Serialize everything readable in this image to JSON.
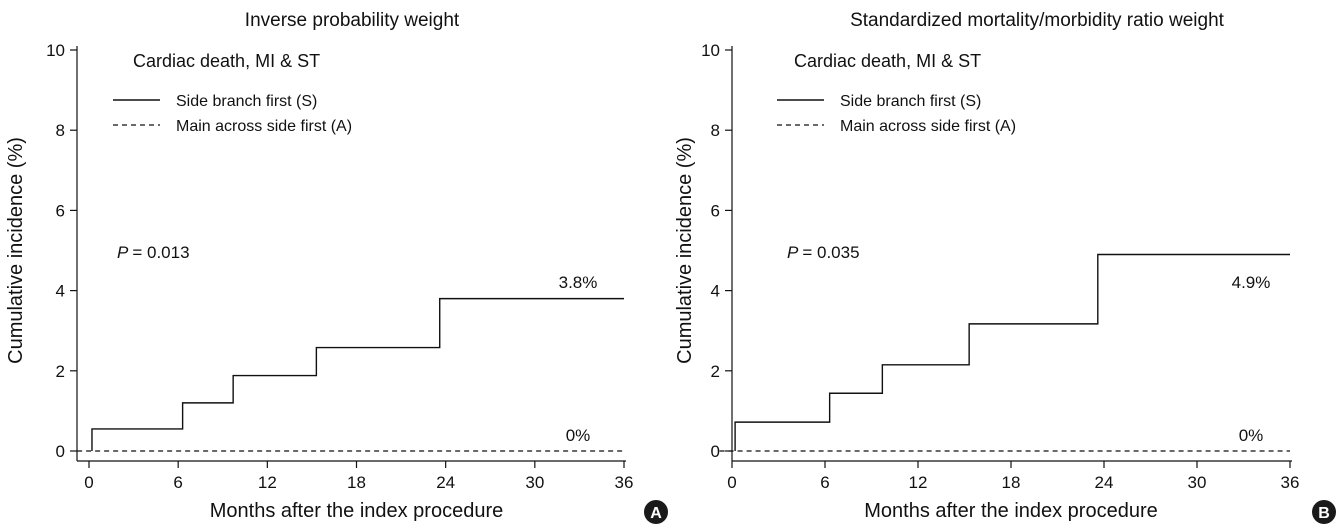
{
  "chart_data": [
    {
      "type": "line",
      "panel_label": "A",
      "title": "Inverse probability weight",
      "xlabel": "Months after the index procedure",
      "ylabel": "Cumulative incidence (%)",
      "xlim": [
        0,
        36
      ],
      "ylim": [
        0,
        10
      ],
      "x_ticks": [
        0,
        6,
        12,
        18,
        24,
        30,
        36
      ],
      "y_ticks": [
        0,
        2,
        4,
        6,
        8,
        10
      ],
      "legend_title": "Cardiac death, MI & ST",
      "legend_position": "top-left",
      "p_value_label": "P",
      "p_value_text": "= 0.013",
      "grid": false,
      "series": [
        {
          "name": "Side branch first (S)",
          "line_style": "solid",
          "step": true,
          "x": [
            0.2,
            6.3,
            9.7,
            15.3,
            23.6,
            36
          ],
          "y": [
            0.55,
            1.2,
            1.88,
            2.58,
            3.8,
            3.8
          ],
          "end_label": "3.8%"
        },
        {
          "name": "Main across side first (A)",
          "line_style": "dashed",
          "step": true,
          "x": [
            -0.8,
            36
          ],
          "y": [
            0,
            0
          ],
          "end_label": "0%"
        }
      ]
    },
    {
      "type": "line",
      "panel_label": "B",
      "title": "Standardized mortality/morbidity ratio weight",
      "xlabel": "Months after the index procedure",
      "ylabel": "Cumulative incidence (%)",
      "xlim": [
        0,
        36
      ],
      "ylim": [
        0,
        10
      ],
      "x_ticks": [
        0,
        6,
        12,
        18,
        24,
        30,
        36
      ],
      "y_ticks": [
        0,
        2,
        4,
        6,
        8,
        10
      ],
      "legend_title": "Cardiac death, MI & ST",
      "legend_position": "top-left",
      "p_value_label": "P",
      "p_value_text": "= 0.035",
      "grid": false,
      "series": [
        {
          "name": "Side branch first (S)",
          "line_style": "solid",
          "step": true,
          "x": [
            0.2,
            6.3,
            9.7,
            15.3,
            23.6,
            36
          ],
          "y": [
            0.72,
            1.44,
            2.15,
            3.17,
            4.9,
            4.9
          ],
          "end_label": "4.9%"
        },
        {
          "name": "Main across side first (A)",
          "line_style": "dashed",
          "step": true,
          "x": [
            -0.8,
            36
          ],
          "y": [
            0,
            0
          ],
          "end_label": "0%"
        }
      ]
    }
  ]
}
